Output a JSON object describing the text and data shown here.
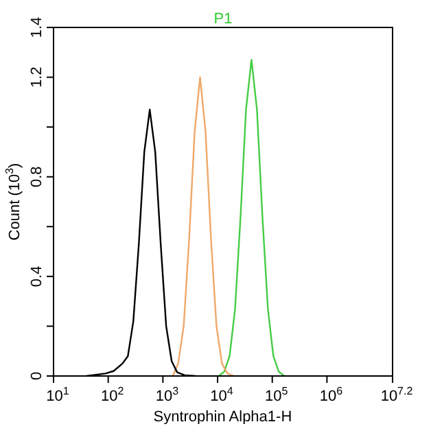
{
  "chart_data": {
    "type": "line",
    "title": "P1",
    "xlabel": "Syntrophin Alpha1-H",
    "ylabel": "Count (10$^{3}$)",
    "log": "x",
    "xlim": [
      10,
      15848932
    ],
    "ylim": [
      0,
      1.4
    ],
    "xticks": [
      {
        "value": 10,
        "label": "10$^{1}$"
      },
      {
        "value": 100,
        "label": "10$^{2}$"
      },
      {
        "value": 1000,
        "label": "10$^{3}$"
      },
      {
        "value": 10000,
        "label": "10$^{4}$"
      },
      {
        "value": 100000,
        "label": "10$^{5}$"
      },
      {
        "value": 1000000,
        "label": "10$^{6}$"
      },
      {
        "value": 15848932,
        "label": "10$^{7.2}$"
      }
    ],
    "yticks": [
      0,
      {
        "value": 0.2,
        "label": null
      },
      0.4,
      {
        "value": 0.6,
        "label": null
      },
      0.8,
      {
        "value": 1.0,
        "label": null
      },
      1.2,
      1.4
    ],
    "grid": false,
    "legend": false,
    "marker": "none",
    "line_style": "solid",
    "series": [
      {
        "color": "#000000",
        "x": [
          40,
          89,
          126,
          182,
          229,
          288,
          363,
          457,
          575,
          724,
          912,
          1148,
          1445,
          1820,
          2512,
          3981
        ],
        "values": [
          0,
          0.01,
          0.02,
          0.05,
          0.08,
          0.22,
          0.53,
          0.9,
          1.07,
          0.9,
          0.53,
          0.2,
          0.06,
          0.015,
          0.003,
          0
        ]
      },
      {
        "color": "#f0a868",
        "x": [
          1514,
          1905,
          2399,
          3020,
          3802,
          4786,
          6026,
          7586,
          9550,
          12023,
          15136,
          19953
        ],
        "values": [
          0,
          0.05,
          0.2,
          0.55,
          0.98,
          1.2,
          0.98,
          0.55,
          0.2,
          0.05,
          0.01,
          0
        ]
      },
      {
        "color": "#44cc44",
        "x": [
          10471,
          13183,
          16596,
          20893,
          26303,
          33113,
          41687,
          52481,
          66069,
          83176,
          104713,
          131826,
          165959
        ],
        "values": [
          0,
          0.017,
          0.08,
          0.27,
          0.64,
          1.07,
          1.27,
          1.07,
          0.64,
          0.27,
          0.08,
          0.017,
          0
        ]
      }
    ]
  }
}
